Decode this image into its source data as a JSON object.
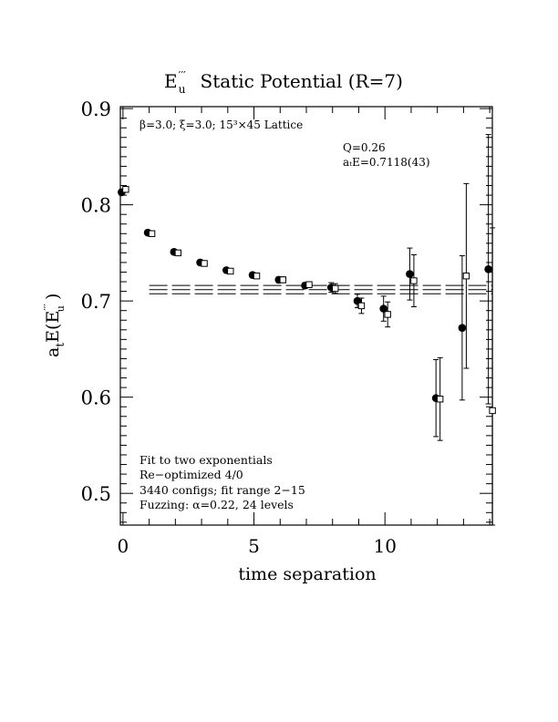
{
  "chart_data": {
    "type": "scatter",
    "title": {
      "symbol": "E",
      "symbol_superscript": "′′′",
      "symbol_subscript": "u",
      "text": "Static Potential (R=7)"
    },
    "xlabel": "time separation",
    "ylabel": {
      "prefix": "a",
      "prefix_sub": "t",
      "middle": "E(E",
      "middle_sup": "′′′",
      "middle_sub": "u",
      "suffix": " )"
    },
    "xlim": [
      -0.1,
      14.1
    ],
    "ylim": [
      0.467,
      0.902
    ],
    "x_ticks": [
      0,
      5,
      10
    ],
    "y_ticks": [
      0.5,
      0.6,
      0.7,
      0.8,
      0.9
    ],
    "x_tick_labels": [
      "0",
      "5",
      "10"
    ],
    "y_tick_labels": [
      "0.5",
      "0.6",
      "0.7",
      "0.8",
      "0.9"
    ],
    "annotations": {
      "lattice": "β=3.0; ξ=3.0; 15³×45 Lattice",
      "q": "Q=0.26",
      "energy": "aₜE=0.7118(43)",
      "fit_lines": [
        "Fit to two exponentials",
        "Re−optimized 4/0",
        "3440 configs; fit range 2−15",
        "Fuzzing: α=0.22, 24 levels"
      ]
    },
    "fit": {
      "value": 0.7118,
      "error": 0.0043,
      "x_range": [
        1.0,
        14.1
      ]
    },
    "series": [
      {
        "marker": "filled-circle",
        "points": [
          {
            "x": 0,
            "y": 0.813,
            "err": 0.003
          },
          {
            "x": 1,
            "y": 0.771,
            "err": 0.002
          },
          {
            "x": 2,
            "y": 0.751,
            "err": 0.002
          },
          {
            "x": 3,
            "y": 0.74,
            "err": 0.002
          },
          {
            "x": 4,
            "y": 0.732,
            "err": 0.002
          },
          {
            "x": 5,
            "y": 0.727,
            "err": 0.002
          },
          {
            "x": 6,
            "y": 0.722,
            "err": 0.003
          },
          {
            "x": 7,
            "y": 0.716,
            "err": 0.003
          },
          {
            "x": 8,
            "y": 0.714,
            "err": 0.005
          },
          {
            "x": 9,
            "y": 0.7,
            "err": 0.007
          },
          {
            "x": 10,
            "y": 0.692,
            "err": 0.013
          },
          {
            "x": 11,
            "y": 0.728,
            "err": 0.027
          },
          {
            "x": 12,
            "y": 0.599,
            "err": 0.04
          },
          {
            "x": 13,
            "y": 0.672,
            "err": 0.075
          },
          {
            "x": 14,
            "y": 0.733,
            "err": 0.14
          }
        ]
      },
      {
        "marker": "open-square",
        "points": [
          {
            "x": 0,
            "y": 0.816,
            "err": 0.003
          },
          {
            "x": 1,
            "y": 0.77,
            "err": 0.002
          },
          {
            "x": 2,
            "y": 0.75,
            "err": 0.002
          },
          {
            "x": 3,
            "y": 0.739,
            "err": 0.002
          },
          {
            "x": 4,
            "y": 0.731,
            "err": 0.002
          },
          {
            "x": 5,
            "y": 0.726,
            "err": 0.002
          },
          {
            "x": 6,
            "y": 0.722,
            "err": 0.003
          },
          {
            "x": 7,
            "y": 0.717,
            "err": 0.003
          },
          {
            "x": 8,
            "y": 0.713,
            "err": 0.005
          },
          {
            "x": 9,
            "y": 0.695,
            "err": 0.008
          },
          {
            "x": 10,
            "y": 0.686,
            "err": 0.013
          },
          {
            "x": 11,
            "y": 0.721,
            "err": 0.027
          },
          {
            "x": 12,
            "y": 0.598,
            "err": 0.043
          },
          {
            "x": 13,
            "y": 0.726,
            "err": 0.096
          },
          {
            "x": 14,
            "y": 0.586,
            "err": 0.19
          }
        ]
      }
    ],
    "grid": false
  }
}
